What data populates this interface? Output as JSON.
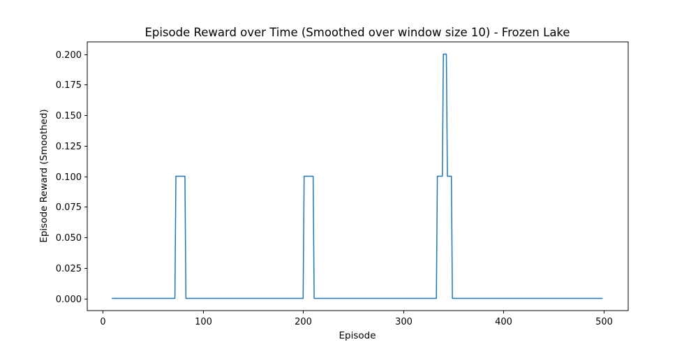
{
  "chart_data": {
    "type": "line",
    "title": "Episode Reward over Time (Smoothed over window size 10) - Frozen Lake",
    "xlabel": "Episode",
    "ylabel": "Episode Reward (Smoothed)",
    "xlim": [
      -15.5,
      524.5
    ],
    "ylim": [
      -0.01,
      0.21
    ],
    "xticks": [
      0,
      100,
      200,
      300,
      400,
      500
    ],
    "xtick_labels": [
      "0",
      "100",
      "200",
      "300",
      "400",
      "500"
    ],
    "yticks": [
      0.0,
      0.025,
      0.05,
      0.075,
      0.1,
      0.125,
      0.15,
      0.175,
      0.2
    ],
    "ytick_labels": [
      "0.000",
      "0.025",
      "0.050",
      "0.075",
      "0.100",
      "0.125",
      "0.150",
      "0.175",
      "0.200"
    ],
    "grid": false,
    "legend": "none",
    "color": "#1f77b4",
    "series": [
      {
        "points": [
          [
            9,
            0.0
          ],
          [
            72,
            0.0
          ],
          [
            73,
            0.1
          ],
          [
            82,
            0.1
          ],
          [
            83,
            0.0
          ],
          [
            200,
            0.0
          ],
          [
            201,
            0.1
          ],
          [
            210,
            0.1
          ],
          [
            211,
            0.0
          ],
          [
            333,
            0.0
          ],
          [
            334,
            0.1
          ],
          [
            339,
            0.1
          ],
          [
            340,
            0.2
          ],
          [
            343,
            0.2
          ],
          [
            344,
            0.1
          ],
          [
            348,
            0.1
          ],
          [
            349,
            0.0
          ],
          [
            499,
            0.0
          ]
        ]
      }
    ]
  }
}
